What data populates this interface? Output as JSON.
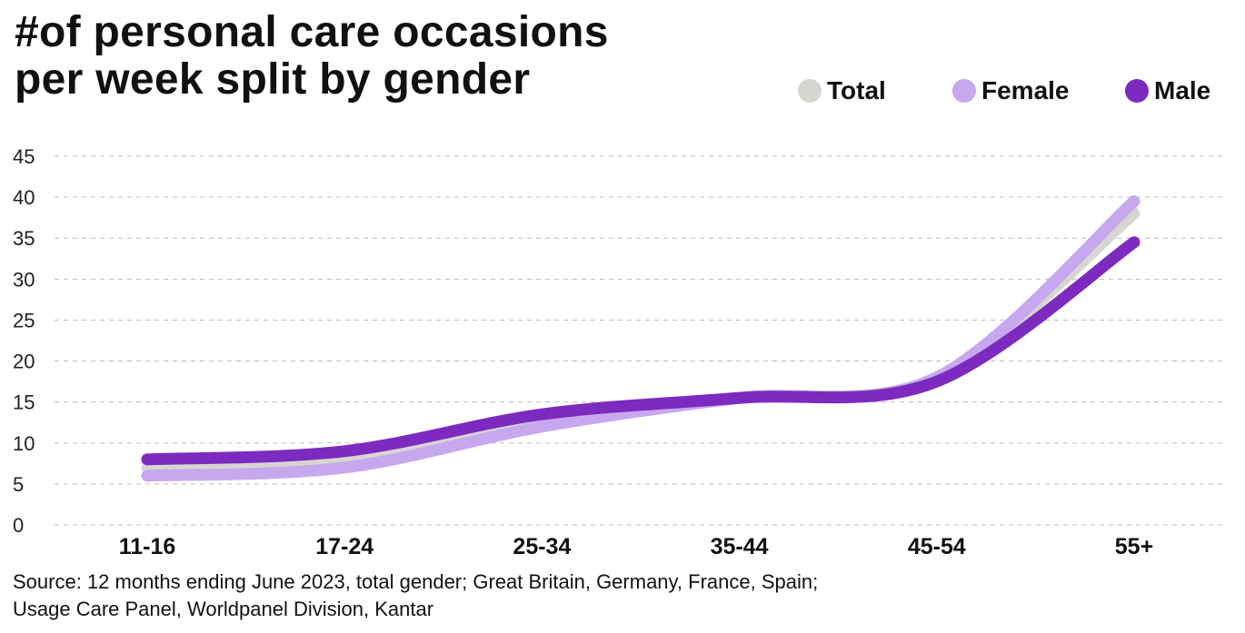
{
  "chart_data": {
    "type": "line",
    "title": "#of personal care occasions per week split by gender",
    "title_lines": [
      "#of personal care occasions",
      "per week split by gender"
    ],
    "categories": [
      "11-16",
      "17-24",
      "25-34",
      "35-44",
      "45-54",
      "55+"
    ],
    "ylim": [
      0,
      45
    ],
    "yticks": [
      0,
      5,
      10,
      15,
      20,
      25,
      30,
      35,
      40,
      45
    ],
    "grid": true,
    "legend_position": "top-right",
    "series": [
      {
        "name": "Total",
        "color": "#d6d6d0",
        "values": [
          7,
          8,
          12.5,
          15.5,
          18,
          38
        ]
      },
      {
        "name": "Female",
        "color": "#c7a8ee",
        "values": [
          6,
          7,
          12,
          15.5,
          18,
          39.5
        ]
      },
      {
        "name": "Male",
        "color": "#7d2ac1",
        "values": [
          8,
          9,
          13.5,
          15.5,
          17.5,
          34.5
        ]
      }
    ],
    "xlabel": "",
    "ylabel": ""
  },
  "source": [
    "Source: 12 months ending June 2023, total gender; Great Britain, Germany, France, Spain;",
    "Usage Care Panel, Worldpanel Division, Kantar"
  ]
}
